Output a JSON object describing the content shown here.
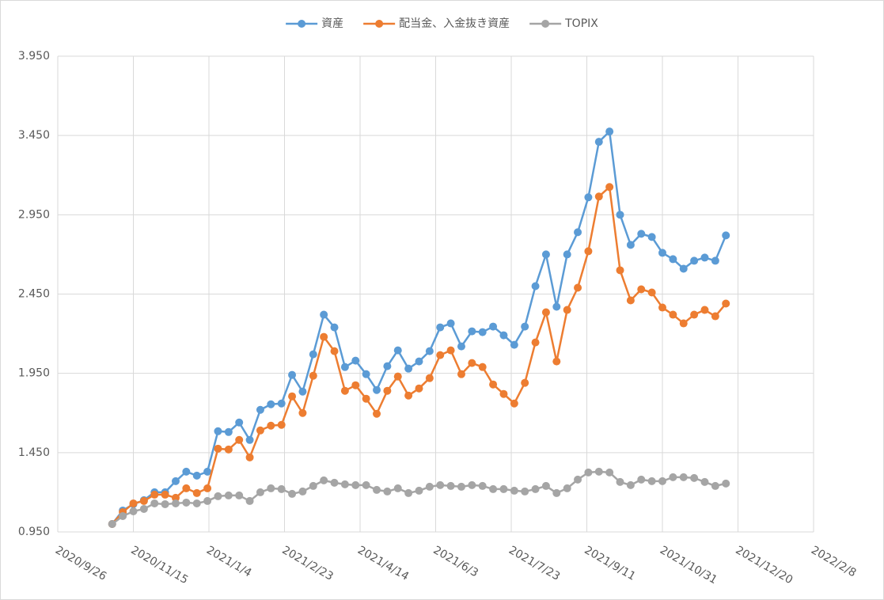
{
  "chart_data": {
    "type": "line",
    "x": [
      "2020/11/1",
      "2020/11/8",
      "2020/11/15",
      "2020/11/22",
      "2020/11/29",
      "2020/12/6",
      "2020/12/13",
      "2020/12/20",
      "2020/12/27",
      "2021/1/3",
      "2021/1/10",
      "2021/1/17",
      "2021/1/24",
      "2021/1/31",
      "2021/2/7",
      "2021/2/14",
      "2021/2/21",
      "2021/2/28",
      "2021/3/7",
      "2021/3/14",
      "2021/3/21",
      "2021/3/28",
      "2021/4/4",
      "2021/4/11",
      "2021/4/18",
      "2021/4/25",
      "2021/5/2",
      "2021/5/9",
      "2021/5/16",
      "2021/5/23",
      "2021/5/30",
      "2021/6/6",
      "2021/6/13",
      "2021/6/20",
      "2021/6/27",
      "2021/7/4",
      "2021/7/11",
      "2021/7/18",
      "2021/7/25",
      "2021/8/1",
      "2021/8/8",
      "2021/8/15",
      "2021/8/22",
      "2021/8/29",
      "2021/9/5",
      "2021/9/12",
      "2021/9/19",
      "2021/9/26",
      "2021/10/3",
      "2021/10/10",
      "2021/10/17",
      "2021/10/24",
      "2021/10/31",
      "2021/11/7",
      "2021/11/14",
      "2021/11/21",
      "2021/11/28",
      "2021/12/5",
      "2021/12/12"
    ],
    "series": [
      {
        "name": "資産",
        "color": "#5b9bd5",
        "values": [
          1.0,
          1.085,
          1.125,
          1.15,
          1.2,
          1.2,
          1.27,
          1.33,
          1.305,
          1.33,
          1.585,
          1.58,
          1.64,
          1.53,
          1.72,
          1.755,
          1.76,
          1.94,
          1.835,
          2.07,
          2.32,
          2.24,
          1.99,
          2.03,
          1.945,
          1.845,
          1.995,
          2.095,
          1.98,
          2.025,
          2.09,
          2.24,
          2.265,
          2.12,
          2.215,
          2.21,
          2.245,
          2.19,
          2.13,
          2.245,
          2.5,
          2.7,
          2.37,
          2.7,
          2.84,
          3.06,
          3.41,
          3.475,
          2.95,
          2.76,
          2.83,
          2.81,
          2.71,
          2.67,
          2.61,
          2.66,
          2.68,
          2.66,
          2.82
        ]
      },
      {
        "name": "配当金、入金抜き資産",
        "color": "#ed7d31",
        "values": [
          1.0,
          1.075,
          1.13,
          1.145,
          1.185,
          1.185,
          1.165,
          1.225,
          1.195,
          1.225,
          1.475,
          1.47,
          1.53,
          1.42,
          1.59,
          1.62,
          1.625,
          1.805,
          1.7,
          1.935,
          2.18,
          2.09,
          1.84,
          1.875,
          1.79,
          1.695,
          1.84,
          1.93,
          1.81,
          1.855,
          1.92,
          2.065,
          2.095,
          1.945,
          2.015,
          1.99,
          1.88,
          1.82,
          1.76,
          1.89,
          2.145,
          2.335,
          2.025,
          2.35,
          2.49,
          2.72,
          3.065,
          3.125,
          2.6,
          2.41,
          2.48,
          2.46,
          2.365,
          2.32,
          2.265,
          2.32,
          2.35,
          2.31,
          2.39
        ]
      },
      {
        "name": "TOPIX",
        "color": "#a5a5a5",
        "values": [
          1.0,
          1.05,
          1.08,
          1.095,
          1.13,
          1.125,
          1.13,
          1.135,
          1.13,
          1.145,
          1.175,
          1.18,
          1.18,
          1.145,
          1.2,
          1.225,
          1.22,
          1.19,
          1.205,
          1.24,
          1.275,
          1.26,
          1.25,
          1.245,
          1.245,
          1.215,
          1.205,
          1.225,
          1.195,
          1.21,
          1.235,
          1.245,
          1.24,
          1.235,
          1.245,
          1.24,
          1.22,
          1.22,
          1.21,
          1.205,
          1.22,
          1.24,
          1.195,
          1.225,
          1.28,
          1.325,
          1.33,
          1.325,
          1.265,
          1.245,
          1.28,
          1.27,
          1.27,
          1.295,
          1.295,
          1.29,
          1.265,
          1.24,
          1.255
        ]
      }
    ],
    "xlim": [
      "2020/9/26",
      "2022/2/8"
    ],
    "xticks": [
      "2020/9/26",
      "2020/11/15",
      "2021/1/4",
      "2021/2/23",
      "2021/4/14",
      "2021/6/3",
      "2021/7/23",
      "2021/9/11",
      "2021/10/31",
      "2021/12/20",
      "2022/2/8"
    ],
    "ylim": [
      0.95,
      3.95
    ],
    "yticks": [
      {
        "value": 0.95,
        "label": "0.950"
      },
      {
        "value": 1.45,
        "label": "1.450"
      },
      {
        "value": 1.95,
        "label": "1.950"
      },
      {
        "value": 2.45,
        "label": "2.450"
      },
      {
        "value": 2.95,
        "label": "2.950"
      },
      {
        "value": 3.45,
        "label": "3.450"
      },
      {
        "value": 3.95,
        "label": "3.950"
      }
    ],
    "grid": true,
    "legend": "top"
  }
}
